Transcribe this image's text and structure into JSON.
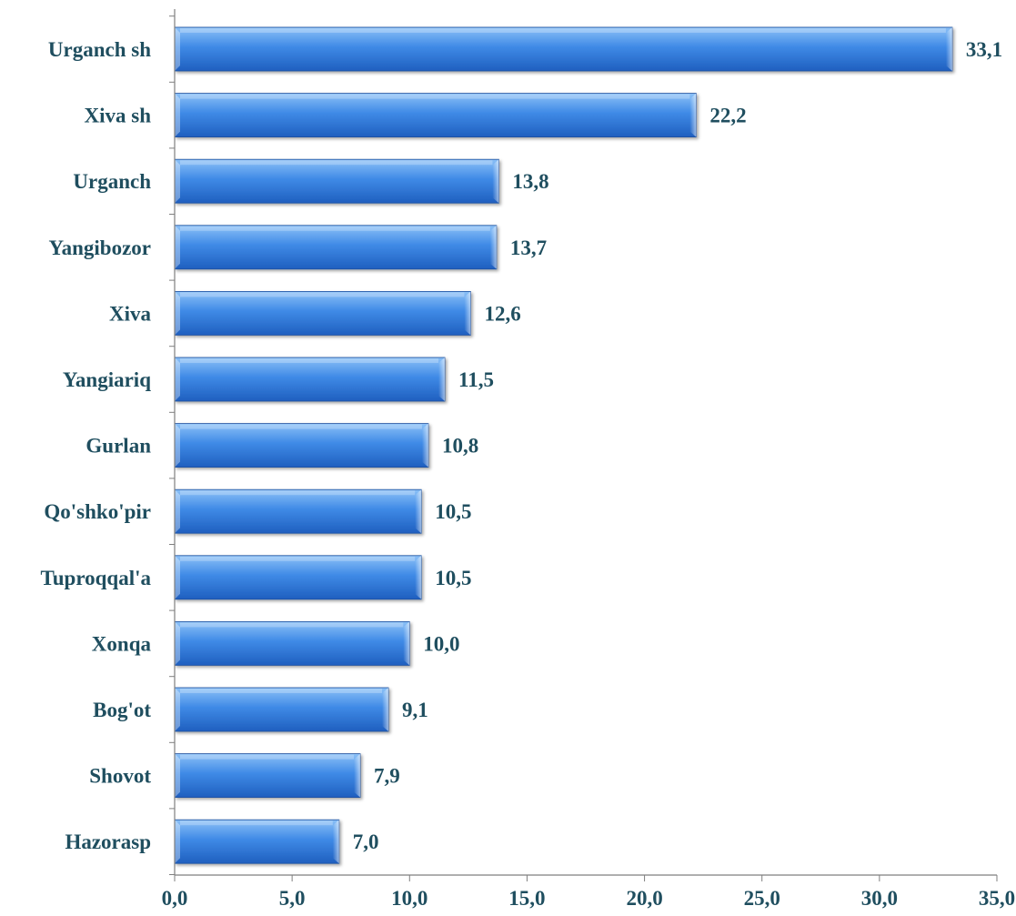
{
  "chart_data": {
    "type": "bar",
    "orientation": "horizontal",
    "categories": [
      "Urganch sh",
      "Xiva sh",
      "Urganch",
      "Yangibozor",
      "Xiva",
      "Yangiariq",
      "Gurlan",
      "Qo'shko'pir",
      "Tuproqqal'a",
      "Xonqa",
      "Bog'ot",
      "Shovot",
      "Hazorasp"
    ],
    "values": [
      33.1,
      22.2,
      13.8,
      13.7,
      12.6,
      11.5,
      10.8,
      10.5,
      10.5,
      10.0,
      9.1,
      7.9,
      7.0
    ],
    "value_labels": [
      "33,1",
      "22,2",
      "13,8",
      "13,7",
      "12,6",
      "11,5",
      "10,8",
      "10,5",
      "10,5",
      "10,0",
      "9,1",
      "7,9",
      "7,0"
    ],
    "x_ticks": [
      0,
      5,
      10,
      15,
      20,
      25,
      30,
      35
    ],
    "x_tick_labels": [
      "0,0",
      "5,0",
      "10,0",
      "15,0",
      "20,0",
      "25,0",
      "30,0",
      "35,0"
    ],
    "xlim": [
      0,
      35
    ],
    "title": "",
    "xlabel": "",
    "ylabel": "",
    "grid": false,
    "legend": "none",
    "colors": {
      "bar_top": "#8cc1f7",
      "bar_mid": "#3f8ae6",
      "bar_bottom": "#1f5fbf",
      "bar_edge": "#1b4f9e",
      "text": "#1f4e5f",
      "axis": "#7f7f7f"
    }
  }
}
